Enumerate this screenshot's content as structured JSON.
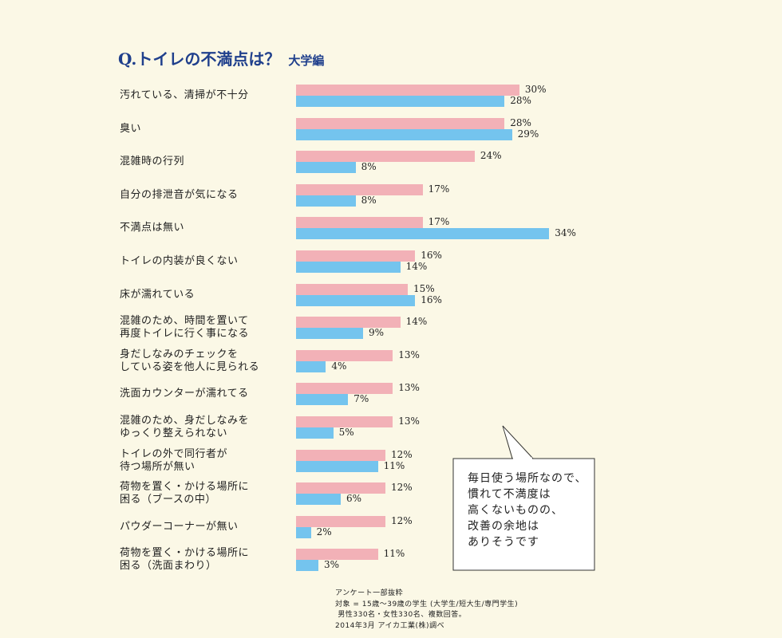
{
  "title": {
    "main": "Q.トイレの不満点は？",
    "sub": "大学編"
  },
  "chart_data": {
    "type": "bar",
    "orientation": "horizontal",
    "categories": [
      "汚れている、清掃が不十分",
      "臭い",
      "混雑時の行列",
      "自分の排泄音が気になる",
      "不満点は無い",
      "トイレの内装が良くない",
      "床が濡れている",
      "混雑のため、時間を置いて\n再度トイレに行く事になる",
      "身だしなみのチェックを\nしている姿を他人に見られる",
      "洗面カウンターが濡れてる",
      "混雑のため、身だしなみを\nゆっくり整えられない",
      "トイレの外で同行者が\n待つ場所が無い",
      "荷物を置く・かける場所に\n困る（ブースの中）",
      "パウダーコーナーが無い",
      "荷物を置く・かける場所に\n困る（洗面まわり）"
    ],
    "series": [
      {
        "values": [
          30,
          28,
          24,
          17,
          17,
          16,
          15,
          14,
          13,
          13,
          13,
          12,
          12,
          12,
          11
        ],
        "color": "#f2b1b7"
      },
      {
        "values": [
          28,
          29,
          8,
          8,
          34,
          14,
          16,
          9,
          4,
          7,
          5,
          11,
          6,
          2,
          3
        ],
        "color": "#74c4ee"
      }
    ],
    "value_suffix": "%",
    "xlim": [
      0,
      35
    ],
    "grid": false,
    "legend": "none"
  },
  "callout": {
    "text": "毎日使う場所なので、\n慣れて不満度は\n高くないものの、\n改善の余地は\nありそうです"
  },
  "footnote": {
    "text": "アンケート一部抜粋\n対象 = 15歳〜39歳の学生 (大学生/短大生/専門学生)\n 男性330名・女性330名、複数回答。\n2014年3月 アイカ工業(株)調べ"
  }
}
